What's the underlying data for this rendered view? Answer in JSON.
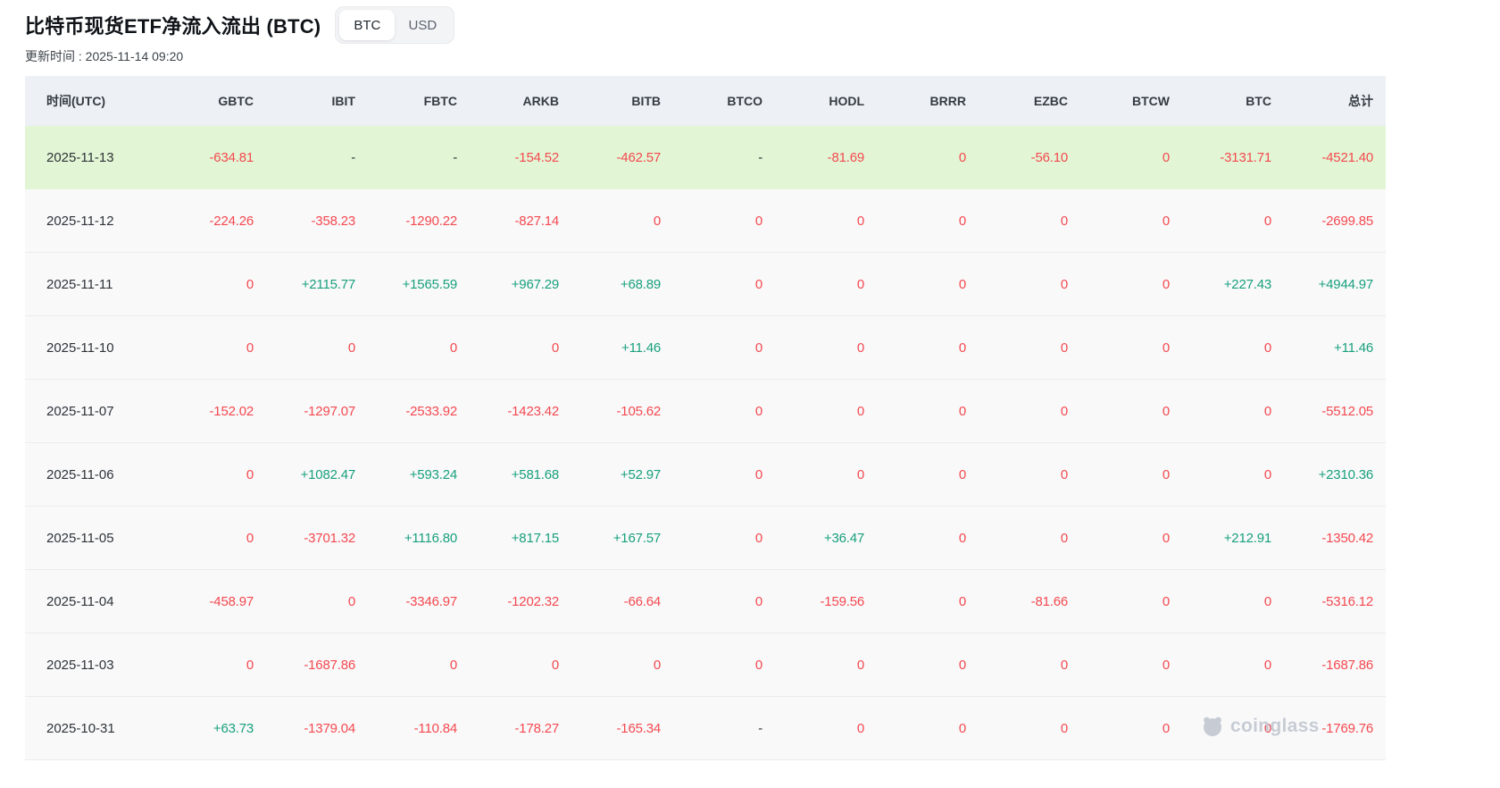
{
  "header": {
    "title": "比特币现货ETF净流入流出 (BTC)",
    "update_time": "更新时间 : 2025-11-14 09:20",
    "toggle": {
      "options": [
        "BTC",
        "USD"
      ],
      "selected": "BTC"
    }
  },
  "table": {
    "columns": [
      "时间(UTC)",
      "GBTC",
      "IBIT",
      "FBTC",
      "ARKB",
      "BITB",
      "BTCO",
      "HODL",
      "BRRR",
      "EZBC",
      "BTCW",
      "BTC",
      "总计"
    ],
    "rows": [
      {
        "date": "2025-11-13",
        "highlighted": true,
        "values": [
          "-634.81",
          "-",
          "-",
          "-154.52",
          "-462.57",
          "-",
          "-81.69",
          "0",
          "-56.10",
          "0",
          "-3131.71",
          "-4521.40"
        ]
      },
      {
        "date": "2025-11-12",
        "highlighted": false,
        "values": [
          "-224.26",
          "-358.23",
          "-1290.22",
          "-827.14",
          "0",
          "0",
          "0",
          "0",
          "0",
          "0",
          "0",
          "-2699.85"
        ]
      },
      {
        "date": "2025-11-11",
        "highlighted": false,
        "values": [
          "0",
          "+2115.77",
          "+1565.59",
          "+967.29",
          "+68.89",
          "0",
          "0",
          "0",
          "0",
          "0",
          "+227.43",
          "+4944.97"
        ]
      },
      {
        "date": "2025-11-10",
        "highlighted": false,
        "values": [
          "0",
          "0",
          "0",
          "0",
          "+11.46",
          "0",
          "0",
          "0",
          "0",
          "0",
          "0",
          "+11.46"
        ]
      },
      {
        "date": "2025-11-07",
        "highlighted": false,
        "values": [
          "-152.02",
          "-1297.07",
          "-2533.92",
          "-1423.42",
          "-105.62",
          "0",
          "0",
          "0",
          "0",
          "0",
          "0",
          "-5512.05"
        ]
      },
      {
        "date": "2025-11-06",
        "highlighted": false,
        "values": [
          "0",
          "+1082.47",
          "+593.24",
          "+581.68",
          "+52.97",
          "0",
          "0",
          "0",
          "0",
          "0",
          "0",
          "+2310.36"
        ]
      },
      {
        "date": "2025-11-05",
        "highlighted": false,
        "values": [
          "0",
          "-3701.32",
          "+1116.80",
          "+817.15",
          "+167.57",
          "0",
          "+36.47",
          "0",
          "0",
          "0",
          "+212.91",
          "-1350.42"
        ]
      },
      {
        "date": "2025-11-04",
        "highlighted": false,
        "values": [
          "-458.97",
          "0",
          "-3346.97",
          "-1202.32",
          "-66.64",
          "0",
          "-159.56",
          "0",
          "-81.66",
          "0",
          "0",
          "-5316.12"
        ]
      },
      {
        "date": "2025-11-03",
        "highlighted": false,
        "values": [
          "0",
          "-1687.86",
          "0",
          "0",
          "0",
          "0",
          "0",
          "0",
          "0",
          "0",
          "0",
          "-1687.86"
        ]
      },
      {
        "date": "2025-10-31",
        "highlighted": false,
        "values": [
          "+63.73",
          "-1379.04",
          "-110.84",
          "-178.27",
          "-165.34",
          "-",
          "0",
          "0",
          "0",
          "0",
          "0",
          "-1769.76"
        ]
      }
    ]
  },
  "watermark": {
    "text": "coinglass"
  },
  "colors": {
    "positive": "#18a07c",
    "negative": "#f4494f",
    "neutral": "#2e3338",
    "highlight_row_bg": "#e2f6d5",
    "header_bg": "#edf0f4"
  }
}
